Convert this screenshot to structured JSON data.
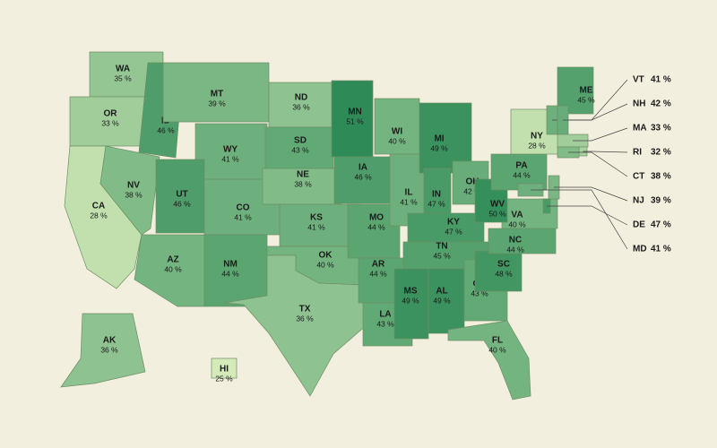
{
  "chart_data": {
    "type": "choropleth",
    "categories": [
      "WA",
      "OR",
      "CA",
      "NV",
      "ID",
      "MT",
      "WY",
      "UT",
      "AZ",
      "CO",
      "NM",
      "ND",
      "SD",
      "NE",
      "KS",
      "OK",
      "TX",
      "MN",
      "IA",
      "MO",
      "AR",
      "LA",
      "WI",
      "IL",
      "MI",
      "IN",
      "OH",
      "KY",
      "TN",
      "MS",
      "AL",
      "GA",
      "FL",
      "SC",
      "NC",
      "VA",
      "WV",
      "PA",
      "NY",
      "ME",
      "AK",
      "HI",
      "VT",
      "NH",
      "MA",
      "RI",
      "CT",
      "NJ",
      "DE",
      "MD"
    ],
    "values": [
      35,
      33,
      28,
      38,
      46,
      39,
      41,
      46,
      40,
      41,
      44,
      36,
      43,
      38,
      41,
      40,
      36,
      51,
      46,
      44,
      44,
      43,
      40,
      41,
      49,
      47,
      42,
      47,
      45,
      49,
      49,
      43,
      40,
      48,
      44,
      40,
      50,
      44,
      28,
      45,
      36,
      25,
      41,
      42,
      33,
      32,
      38,
      39,
      47,
      41
    ],
    "value_labels": [
      "35 %",
      "33 %",
      "28 %",
      "38 %",
      "46 %",
      "39 %",
      "41 %",
      "46 %",
      "40 %",
      "41 %",
      "44 %",
      "36 %",
      "43 %",
      "38 %",
      "41 %",
      "40 %",
      "36 %",
      "51 %",
      "46 %",
      "44 %",
      "44 %",
      "43 %",
      "40 %",
      "41 %",
      "49 %",
      "47 %",
      "42 %",
      "47 %",
      "45 %",
      "49 %",
      "49 %",
      "43 %",
      "40 %",
      "48 %",
      "44 %",
      "40 %",
      "50 %",
      "44 %",
      "28 %",
      "45 %",
      "36 %",
      "25 %",
      "41 %",
      "42 %",
      "33 %",
      "32 %",
      "38 %",
      "39 %",
      "47 %",
      "41 %"
    ],
    "color_scale": [
      "#d4ebb9",
      "#2e8b57"
    ]
  }
}
